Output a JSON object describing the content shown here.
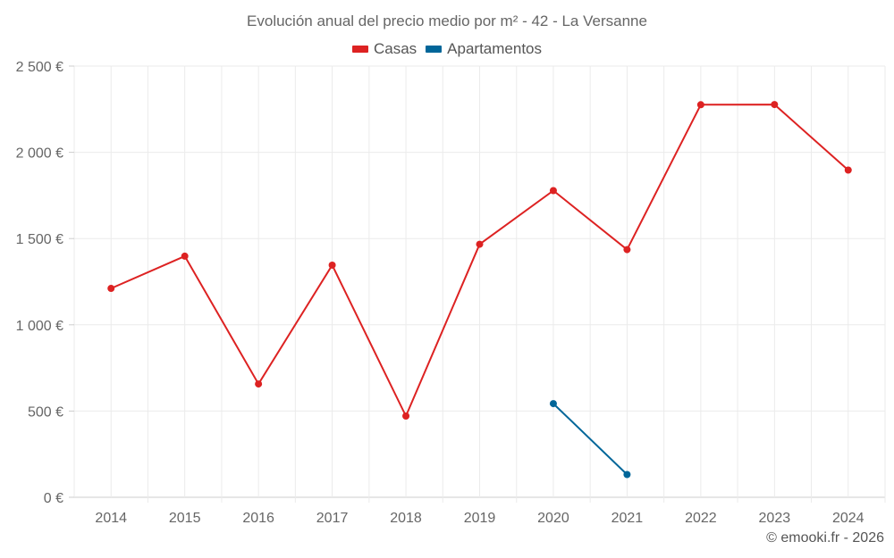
{
  "chart_data": {
    "type": "line",
    "title": "Evolución anual del precio medio por m² - 42 - La Versanne",
    "xlabel": "",
    "ylabel": "",
    "categories": [
      "2014",
      "2015",
      "2016",
      "2017",
      "2018",
      "2019",
      "2020",
      "2021",
      "2022",
      "2023",
      "2024"
    ],
    "series": [
      {
        "name": "Casas",
        "color": "#dd2222",
        "values": [
          1211,
          1398,
          657,
          1346,
          471,
          1467,
          1778,
          1436,
          2276,
          2277,
          1897
        ]
      },
      {
        "name": "Apartamentos",
        "color": "#006699",
        "values": [
          null,
          null,
          null,
          null,
          null,
          null,
          543,
          132,
          null,
          null,
          null
        ]
      }
    ],
    "ylim": [
      0,
      2500
    ],
    "yticks": [
      0,
      500,
      1000,
      1500,
      2000,
      2500
    ],
    "ytick_labels": [
      "0 €",
      "500 €",
      "1 000 €",
      "1 500 €",
      "2 000 €",
      "2 500 €"
    ],
    "grid": true,
    "legend_position": "top"
  },
  "credit": "© emooki.fr - 2026"
}
